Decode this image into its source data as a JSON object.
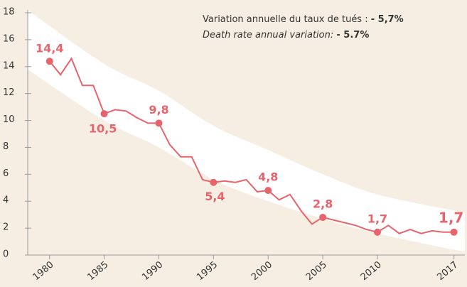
{
  "chart_data": {
    "type": "line",
    "note_fr": {
      "text": "Variation annuelle du taux de tués : ",
      "value": "- 5,7%"
    },
    "note_en": {
      "text": "Death rate annual variation: ",
      "value": "- 5.7%"
    },
    "x": [
      1980,
      1981,
      1982,
      1983,
      1984,
      1985,
      1986,
      1987,
      1988,
      1989,
      1990,
      1991,
      1992,
      1993,
      1994,
      1995,
      1996,
      1997,
      1998,
      1999,
      2000,
      2001,
      2002,
      2003,
      2004,
      2005,
      2006,
      2007,
      2008,
      2009,
      2010,
      2011,
      2012,
      2013,
      2014,
      2015,
      2016,
      2017
    ],
    "series": [
      {
        "color": "#e8646c",
        "values": [
          14.4,
          13.4,
          14.6,
          12.6,
          12.6,
          10.5,
          10.8,
          10.7,
          10.2,
          9.8,
          9.8,
          8.2,
          7.3,
          7.3,
          5.6,
          5.4,
          5.5,
          5.4,
          5.6,
          4.7,
          4.8,
          4.1,
          4.5,
          3.3,
          2.3,
          2.8,
          2.6,
          2.4,
          2.2,
          1.9,
          1.7,
          2.2,
          1.6,
          1.9,
          1.6,
          1.8,
          1.7,
          1.7
        ]
      }
    ],
    "annotations": [
      {
        "x": 1980,
        "value": 14.4,
        "label": "14,4"
      },
      {
        "x": 1985,
        "value": 10.5,
        "label": "10,5"
      },
      {
        "x": 1990,
        "value": 9.8,
        "label": "9,8"
      },
      {
        "x": 1995,
        "value": 5.4,
        "label": "5,4"
      },
      {
        "x": 2000,
        "value": 4.8,
        "label": "4,8"
      },
      {
        "x": 2005,
        "value": 2.8,
        "label": "2,8"
      },
      {
        "x": 2010,
        "value": 1.7,
        "label": "1,7"
      },
      {
        "x": 2017,
        "value": 1.7,
        "label": "1,7"
      }
    ],
    "band": {
      "color": "#ffffff",
      "x": [
        1978,
        1985,
        1990,
        1995,
        2000,
        2005,
        2010,
        2017,
        2018
      ],
      "upper": [
        18.2,
        14.2,
        12.2,
        9.6,
        7.8,
        6.0,
        4.5,
        3.3,
        3.1
      ],
      "lower": [
        13.8,
        10.0,
        8.0,
        5.6,
        4.0,
        2.7,
        1.6,
        0.4,
        0.3
      ]
    },
    "xlim": [
      1978,
      2018
    ],
    "ylim": [
      0,
      18
    ],
    "xticks": [
      1980,
      1985,
      1990,
      1995,
      2000,
      2005,
      2010,
      2017
    ],
    "yticks": [
      0,
      2,
      4,
      6,
      8,
      10,
      12,
      14,
      16,
      18
    ],
    "background": "#f6eee2",
    "axis_color": "#9a9a9a"
  }
}
